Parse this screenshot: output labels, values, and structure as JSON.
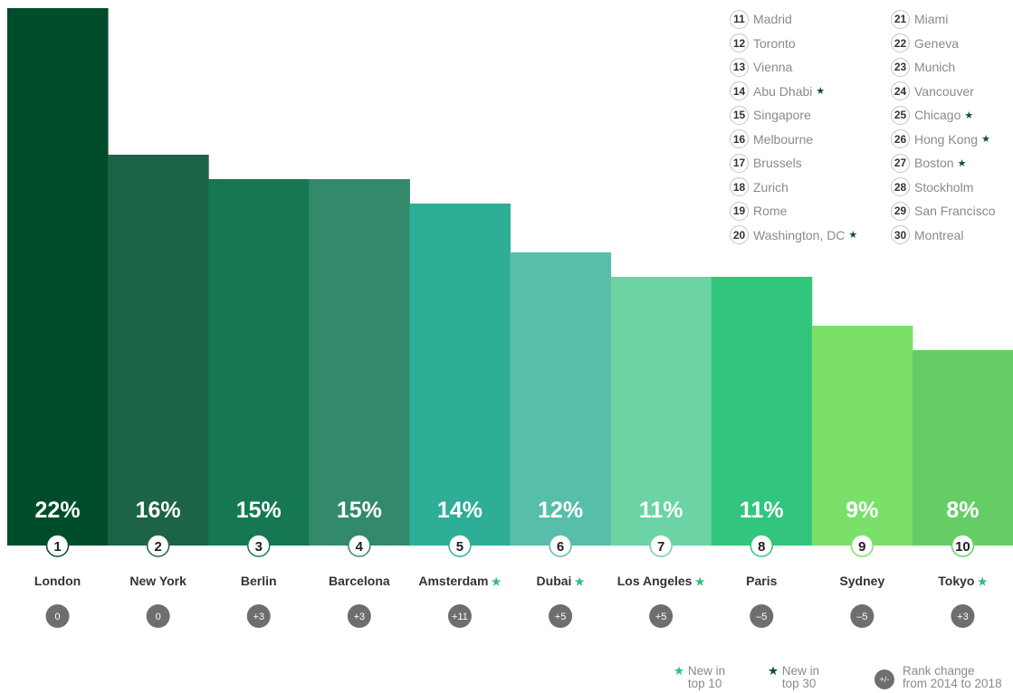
{
  "chart_data": {
    "type": "bar",
    "categories": [
      "London",
      "New York",
      "Berlin",
      "Barcelona",
      "Amsterdam",
      "Dubai",
      "Los Angeles",
      "Paris",
      "Sydney",
      "Tokyo"
    ],
    "ranks": [
      "1",
      "2",
      "3",
      "4",
      "5",
      "6",
      "7",
      "8",
      "9",
      "10"
    ],
    "values": [
      22,
      16,
      15,
      15,
      14,
      12,
      11,
      11,
      9,
      8
    ],
    "value_labels": [
      "22%",
      "16%",
      "15%",
      "15%",
      "14%",
      "12%",
      "11%",
      "11%",
      "9%",
      "8%"
    ],
    "rank_change": [
      "0",
      "0",
      "+3",
      "+3",
      "+11",
      "+5",
      "+5",
      "–5",
      "–5",
      "+3"
    ],
    "new_in_top_10": [
      false,
      false,
      false,
      false,
      true,
      true,
      true,
      false,
      false,
      true
    ],
    "bar_colors": [
      "#014d2b",
      "#1d6345",
      "#167853",
      "#338a6b",
      "#2eae97",
      "#56bea9",
      "#6bd3a4",
      "#32c57d",
      "#7ae06a",
      "#66cd66"
    ],
    "ylim": [
      0,
      22
    ]
  },
  "legend": {
    "left": [
      {
        "rank": "11",
        "city": "Madrid",
        "new_top30": false
      },
      {
        "rank": "12",
        "city": "Toronto",
        "new_top30": false
      },
      {
        "rank": "13",
        "city": "Vienna",
        "new_top30": false
      },
      {
        "rank": "14",
        "city": "Abu Dhabi",
        "new_top30": true
      },
      {
        "rank": "15",
        "city": "Singapore",
        "new_top30": false
      },
      {
        "rank": "16",
        "city": "Melbourne",
        "new_top30": false
      },
      {
        "rank": "17",
        "city": "Brussels",
        "new_top30": false
      },
      {
        "rank": "18",
        "city": "Zurich",
        "new_top30": false
      },
      {
        "rank": "19",
        "city": "Rome",
        "new_top30": false
      },
      {
        "rank": "20",
        "city": "Washington, DC",
        "new_top30": true
      }
    ],
    "right": [
      {
        "rank": "21",
        "city": "Miami",
        "new_top30": false
      },
      {
        "rank": "22",
        "city": "Geneva",
        "new_top30": false
      },
      {
        "rank": "23",
        "city": "Munich",
        "new_top30": false
      },
      {
        "rank": "24",
        "city": "Vancouver",
        "new_top30": false
      },
      {
        "rank": "25",
        "city": "Chicago",
        "new_top30": true
      },
      {
        "rank": "26",
        "city": "Hong Kong",
        "new_top30": true
      },
      {
        "rank": "27",
        "city": "Boston",
        "new_top30": true
      },
      {
        "rank": "28",
        "city": "Stockholm",
        "new_top30": false
      },
      {
        "rank": "29",
        "city": "San Francisco",
        "new_top30": false
      },
      {
        "rank": "30",
        "city": "Montreal",
        "new_top30": false
      }
    ]
  },
  "key": {
    "new_top10_line1": "New in",
    "new_top10_line2": "top 10",
    "new_top30_line1": "New in",
    "new_top30_line2": "top 30",
    "rank_change_icon": "+/-",
    "rank_change_line1": "Rank change",
    "rank_change_line2": "from 2014 to 2018"
  },
  "icons": {
    "star": "★"
  },
  "colors": {
    "star_light": "#2fc07a",
    "star_dark": "#0b5132",
    "change_badge": "#6e6e6e"
  }
}
